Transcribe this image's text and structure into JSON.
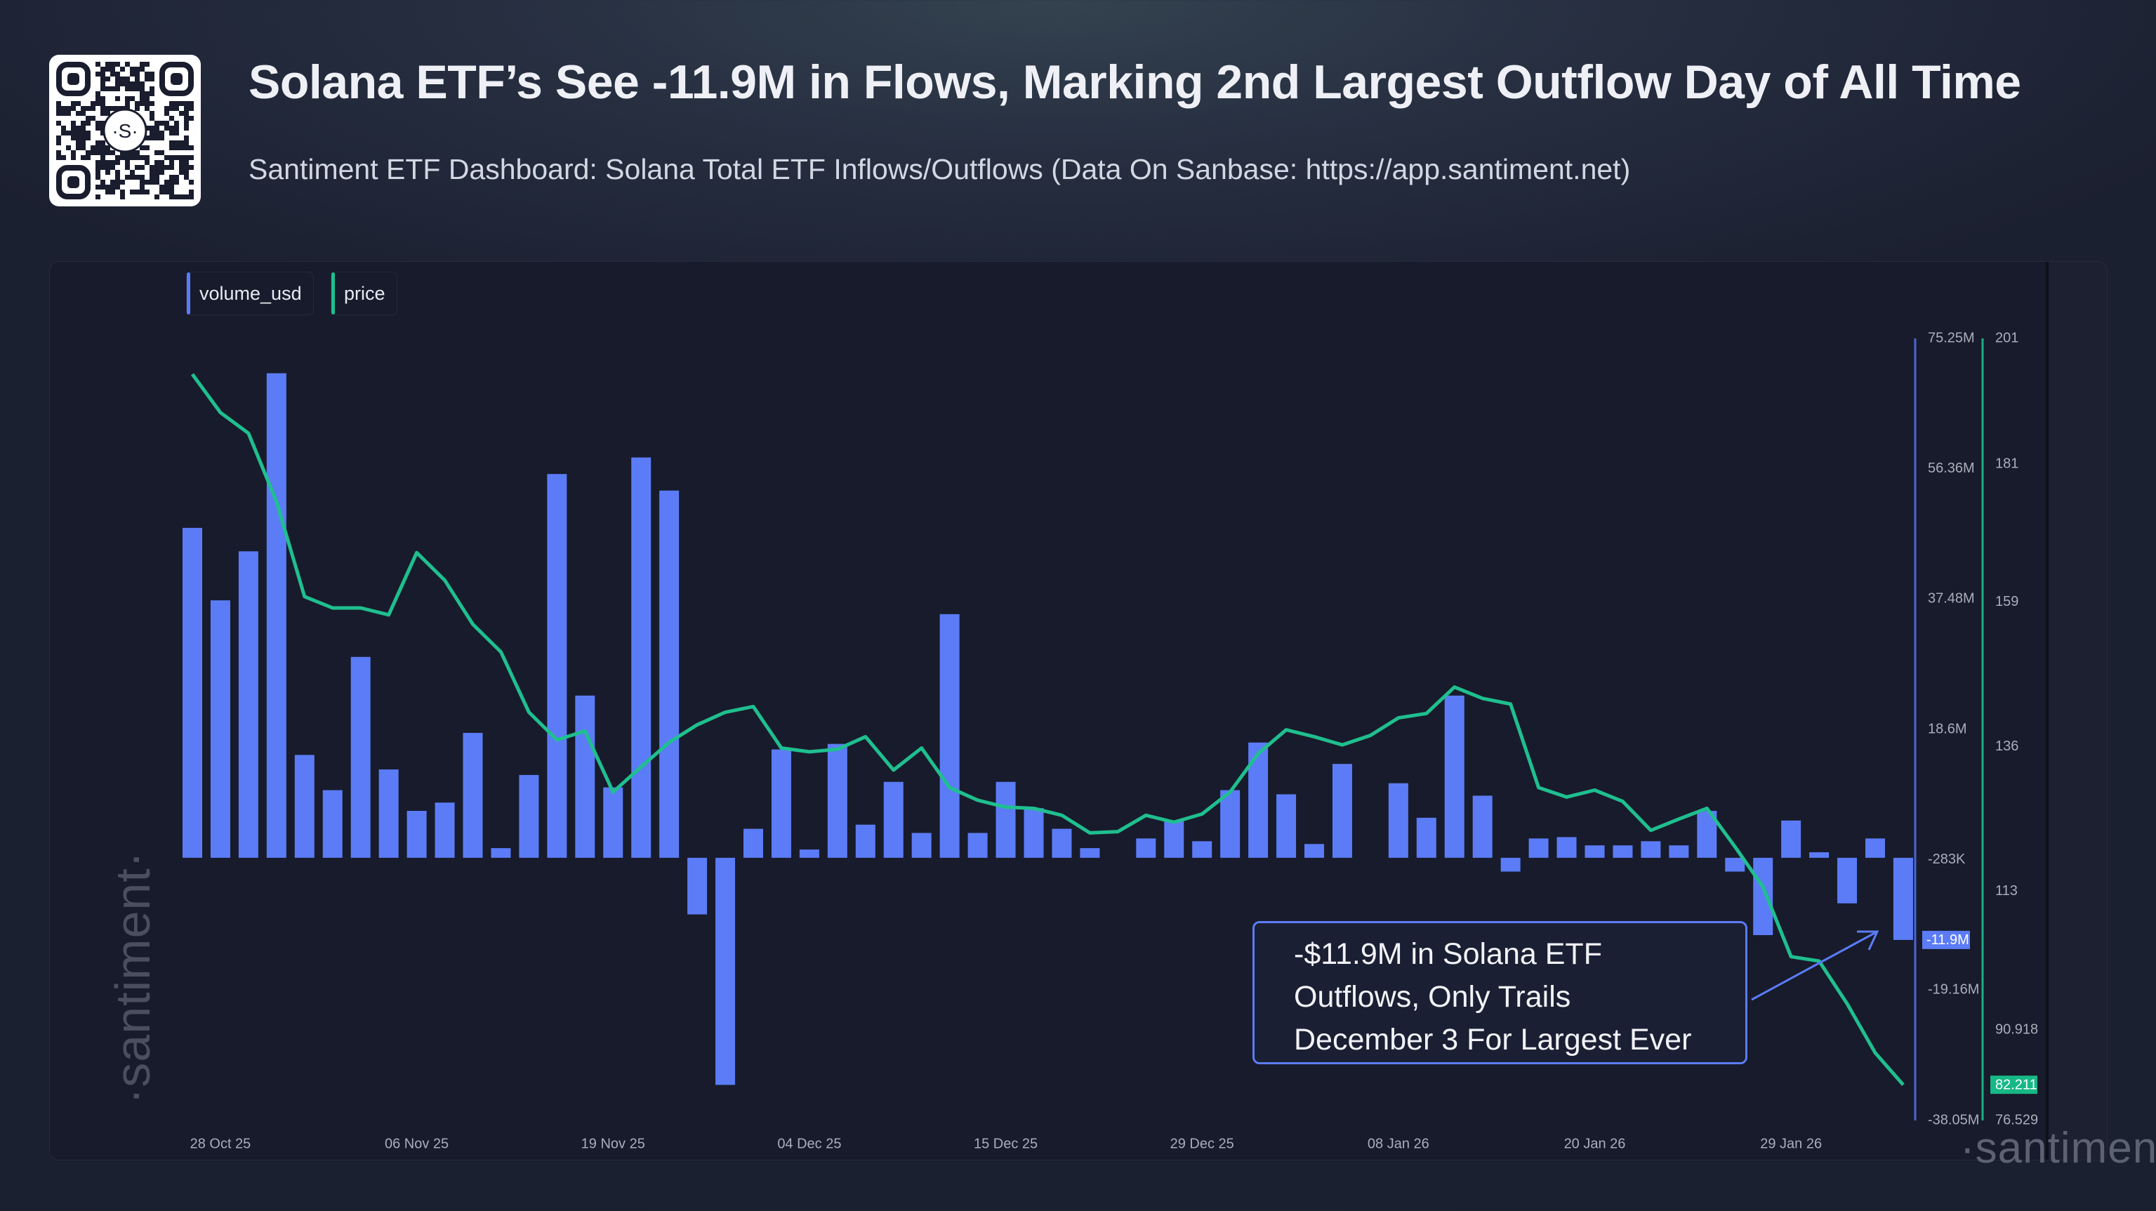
{
  "header": {
    "title": "Solana ETF’s See -11.9M in Flows, Marking 2nd Largest Outflow Day of All Time",
    "subtitle": "Santiment ETF Dashboard: Solana Total ETF Inflows/Outflows (Data On Sanbase: https://app.santiment.net)"
  },
  "qr_logo": "·S·",
  "watermark": "·santiment·",
  "annotation": {
    "lines": [
      "-$11.9M in Solana ETF",
      "Outflows, Only Trails",
      "December 3 For Largest Ever"
    ]
  },
  "colors": {
    "volume": "#5b7cf6",
    "price": "#1fbf8f",
    "background": "#181b2b"
  },
  "chart_data": {
    "type": "bar+line",
    "legend": [
      "volume_usd",
      "price"
    ],
    "legend_position": "top-left",
    "grid": false,
    "xticks": [
      {
        "label": "28 Oct 25",
        "index": 1
      },
      {
        "label": "06 Nov 25",
        "index": 8
      },
      {
        "label": "19 Nov 25",
        "index": 15
      },
      {
        "label": "04 Dec 25",
        "index": 22
      },
      {
        "label": "15 Dec 25",
        "index": 29
      },
      {
        "label": "29 Dec 25",
        "index": 36
      },
      {
        "label": "08 Jan 26",
        "index": 43
      },
      {
        "label": "20 Jan 26",
        "index": 50
      },
      {
        "label": "29 Jan 26",
        "index": 57
      }
    ],
    "volume_axis": {
      "ticks": [
        "75.25M",
        "56.36M",
        "37.48M",
        "18.6M",
        "-283K",
        "-19.16M",
        "-38.05M"
      ],
      "tick_values": [
        75.25,
        56.36,
        37.48,
        18.6,
        -0.283,
        -19.16,
        -38.05
      ],
      "range": [
        -38.05,
        75.25
      ],
      "last_label": "-11.9M",
      "last_value": -11.9
    },
    "price_axis": {
      "ticks": [
        "201",
        "181",
        "159",
        "136",
        "113",
        "90.918",
        "76.529"
      ],
      "tick_values": [
        201,
        181,
        159,
        136,
        113,
        90.918,
        76.529
      ],
      "range": [
        76.529,
        201
      ],
      "last_label": "82.211",
      "last_value": 82.211
    },
    "series": [
      {
        "name": "volume_usd",
        "type": "bar",
        "unit": "M USD",
        "values": [
          47.8,
          37.3,
          44.4,
          70.2,
          14.9,
          9.8,
          29.1,
          12.8,
          6.8,
          8.0,
          18.1,
          1.4,
          12.0,
          55.6,
          23.5,
          10.2,
          58.0,
          53.2,
          -8.2,
          -32.9,
          4.2,
          15.7,
          1.2,
          16.5,
          4.8,
          11.0,
          3.6,
          35.3,
          3.6,
          11.0,
          7.2,
          4.2,
          1.4,
          0,
          2.8,
          5.4,
          2.4,
          9.8,
          16.7,
          9.2,
          2.0,
          13.6,
          0,
          10.8,
          5.8,
          23.5,
          9.0,
          -2.0,
          2.8,
          3.0,
          1.8,
          1.8,
          2.4,
          1.8,
          6.8,
          -2.0,
          -11.2,
          5.4,
          0.8,
          -6.6,
          2.8,
          -11.9
        ]
      },
      {
        "name": "price",
        "type": "line",
        "values": [
          195.3,
          189.2,
          185.9,
          175.0,
          159.9,
          158.1,
          158.1,
          157.0,
          166.9,
          162.5,
          155.5,
          151.1,
          141.5,
          137.1,
          138.5,
          128.8,
          132.8,
          136.7,
          139.5,
          141.5,
          142.4,
          135.8,
          135.2,
          135.6,
          137.6,
          132.3,
          135.8,
          129.5,
          127.5,
          126.4,
          126.2,
          125.1,
          122.3,
          122.5,
          125.1,
          124.0,
          125.3,
          128.8,
          134.9,
          138.7,
          137.6,
          136.3,
          137.8,
          140.6,
          141.3,
          145.5,
          143.7,
          142.8,
          129.5,
          128.0,
          129.1,
          127.3,
          122.7,
          124.5,
          126.2,
          120.1,
          113.7,
          102.6,
          101.9,
          95.1,
          87.3,
          82.2
        ]
      }
    ]
  }
}
